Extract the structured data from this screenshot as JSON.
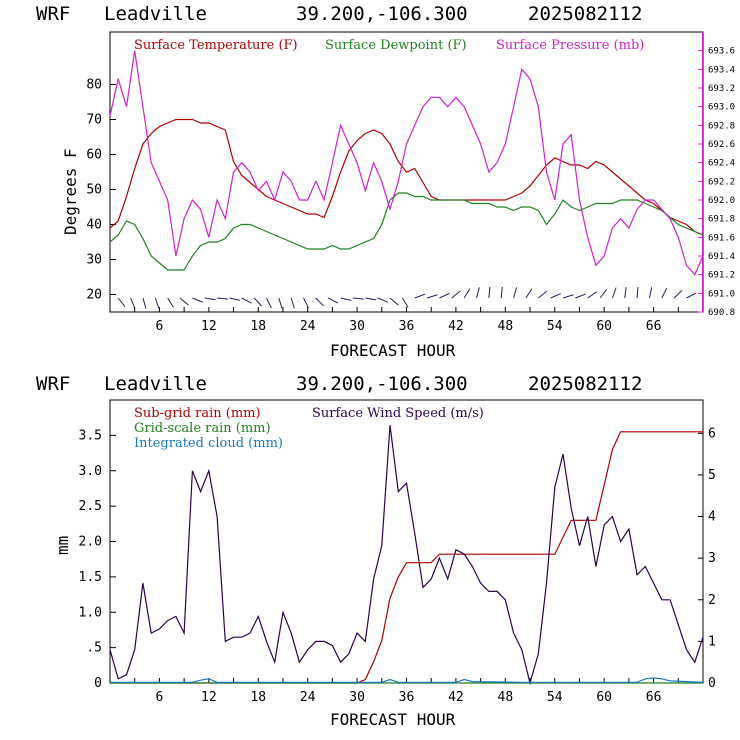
{
  "panels": [
    {
      "header": {
        "model": "WRF",
        "station": "Leadville",
        "coords": "39.200,-106.300",
        "run": "2025082112"
      },
      "xlabel": "FORECAST HOUR",
      "ylabel": "Degrees F",
      "legend": [
        {
          "text": "Surface Temperature (F)",
          "color": "#b00000"
        },
        {
          "text": "Surface Dewpoint (F)",
          "color": "#208020"
        },
        {
          "text": "Surface Pressure (mb)",
          "color": "#d020d0"
        }
      ]
    },
    {
      "header": {
        "model": "WRF",
        "station": "Leadville",
        "coords": "39.200,-106.300",
        "run": "2025082112"
      },
      "xlabel": "FORECAST HOUR",
      "ylabel": "mm",
      "legend": [
        {
          "text": "Sub-grid rain (mm)",
          "color": "#b00000"
        },
        {
          "text": "Surface Wind Speed (m/s)",
          "color": "#300050"
        },
        {
          "text": "Grid-scale rain (mm)",
          "color": "#208020"
        },
        {
          "text": "Integrated cloud (mm)",
          "color": "#1878c8"
        }
      ]
    }
  ],
  "chart_data": [
    {
      "type": "line",
      "title": "WRF Leadville 39.200,-106.300 2025082112",
      "xlabel": "FORECAST HOUR",
      "ylabel": "Degrees F",
      "xlim": [
        0,
        72
      ],
      "ylim": [
        15,
        95
      ],
      "x_ticks": [
        "6",
        "12",
        "18",
        "24",
        "30",
        "36",
        "42",
        "48",
        "54",
        "60",
        "66"
      ],
      "y_ticks": [
        "20",
        "30",
        "40",
        "50",
        "60",
        "70",
        "80"
      ],
      "y2_ticks": [
        "690.8",
        "691.0",
        "691.2",
        "691.4",
        "691.6",
        "691.8",
        "692.0",
        "692.2",
        "692.4",
        "692.6",
        "692.8",
        "693.0",
        "693.2",
        "693.4",
        "693.6"
      ],
      "y2lim": [
        690.8,
        693.8
      ],
      "series": [
        {
          "name": "Surface Temperature (F)",
          "color": "#b00000",
          "axis": "left",
          "x": [
            0,
            1,
            2,
            3,
            4,
            5,
            6,
            7,
            8,
            9,
            10,
            11,
            12,
            13,
            14,
            15,
            16,
            17,
            18,
            19,
            20,
            21,
            22,
            23,
            24,
            25,
            26,
            27,
            28,
            29,
            30,
            31,
            32,
            33,
            34,
            35,
            36,
            37,
            38,
            39,
            40,
            41,
            42,
            43,
            44,
            45,
            46,
            47,
            48,
            49,
            50,
            51,
            52,
            53,
            54,
            55,
            56,
            57,
            58,
            59,
            60,
            61,
            62,
            63,
            64,
            65,
            66,
            67,
            68,
            69,
            70,
            71,
            72
          ],
          "y": [
            39,
            41,
            48,
            56,
            63,
            66,
            68,
            69,
            70,
            70,
            70,
            69,
            69,
            68,
            67,
            58,
            54,
            52,
            50,
            48,
            47,
            46,
            45,
            44,
            43,
            43,
            42,
            48,
            55,
            61,
            64,
            66,
            67,
            66,
            63,
            58,
            55,
            56,
            52,
            48,
            47,
            47,
            47,
            47,
            47,
            47,
            47,
            47,
            47,
            48,
            49,
            51,
            54,
            57,
            59,
            58,
            57,
            57,
            56,
            58,
            57,
            55,
            53,
            51,
            49,
            47,
            46,
            44,
            42,
            41,
            40,
            38,
            37
          ]
        },
        {
          "name": "Surface Dewpoint (F)",
          "color": "#208020",
          "axis": "left",
          "x": [
            0,
            1,
            2,
            3,
            4,
            5,
            6,
            7,
            8,
            9,
            10,
            11,
            12,
            13,
            14,
            15,
            16,
            17,
            18,
            19,
            20,
            21,
            22,
            23,
            24,
            25,
            26,
            27,
            28,
            29,
            30,
            31,
            32,
            33,
            34,
            35,
            36,
            37,
            38,
            39,
            40,
            41,
            42,
            43,
            44,
            45,
            46,
            47,
            48,
            49,
            50,
            51,
            52,
            53,
            54,
            55,
            56,
            57,
            58,
            59,
            60,
            61,
            62,
            63,
            64,
            65,
            66,
            67,
            68,
            69,
            70,
            71,
            72
          ],
          "y": [
            35,
            37,
            41,
            40,
            36,
            31,
            29,
            27,
            27,
            27,
            31,
            34,
            35,
            35,
            36,
            39,
            40,
            40,
            39,
            38,
            37,
            36,
            35,
            34,
            33,
            33,
            33,
            34,
            33,
            33,
            34,
            35,
            36,
            40,
            47,
            49,
            49,
            48,
            48,
            47,
            47,
            47,
            47,
            47,
            46,
            46,
            46,
            45,
            45,
            44,
            45,
            45,
            44,
            40,
            43,
            47,
            45,
            44,
            45,
            46,
            46,
            46,
            47,
            47,
            47,
            46,
            45,
            44,
            42,
            40,
            39,
            38,
            37
          ]
        },
        {
          "name": "Surface Pressure (mb)",
          "color": "#d020d0",
          "axis": "right",
          "x": [
            0,
            1,
            2,
            3,
            4,
            5,
            6,
            7,
            8,
            9,
            10,
            11,
            12,
            13,
            14,
            15,
            16,
            17,
            18,
            19,
            20,
            21,
            22,
            23,
            24,
            25,
            26,
            27,
            28,
            29,
            30,
            31,
            32,
            33,
            34,
            35,
            36,
            37,
            38,
            39,
            40,
            41,
            42,
            43,
            44,
            45,
            46,
            47,
            48,
            49,
            50,
            51,
            52,
            53,
            54,
            55,
            56,
            57,
            58,
            59,
            60,
            61,
            62,
            63,
            64,
            65,
            66,
            67,
            68,
            69,
            70,
            71,
            72
          ],
          "y": [
            692.9,
            693.3,
            693.0,
            693.6,
            693.0,
            692.4,
            692.2,
            692.0,
            691.4,
            691.8,
            692.0,
            691.9,
            691.6,
            692.0,
            691.8,
            692.3,
            692.4,
            692.3,
            692.1,
            692.2,
            692.0,
            692.3,
            692.2,
            692.0,
            692.0,
            692.2,
            692.0,
            692.4,
            692.8,
            692.6,
            692.4,
            692.1,
            692.4,
            692.2,
            691.9,
            692.2,
            692.6,
            692.8,
            693.0,
            693.1,
            693.1,
            693.0,
            693.1,
            693.0,
            692.8,
            692.6,
            692.3,
            692.4,
            692.6,
            693.0,
            693.4,
            693.3,
            693.0,
            692.3,
            692.0,
            692.6,
            692.7,
            692.0,
            691.6,
            691.3,
            691.4,
            691.7,
            691.8,
            691.7,
            691.9,
            692.0,
            692.0,
            691.9,
            691.8,
            691.6,
            691.3,
            691.2,
            691.4
          ]
        }
      ]
    },
    {
      "type": "line",
      "title": "WRF Leadville 39.200,-106.300 2025082112",
      "xlabel": "FORECAST HOUR",
      "ylabel": "mm",
      "xlim": [
        0,
        72
      ],
      "ylim": [
        0,
        4.0
      ],
      "x_ticks": [
        "6",
        "12",
        "18",
        "24",
        "30",
        "36",
        "42",
        "48",
        "54",
        "60",
        "66"
      ],
      "y_ticks": [
        "0",
        ".5",
        "1.0",
        "1.5",
        "2.0",
        "2.5",
        "3.0",
        "3.5"
      ],
      "y2_ticks": [
        "0",
        "1",
        "2",
        "3",
        "4",
        "5",
        "6"
      ],
      "y2lim": [
        0,
        6.8
      ],
      "series": [
        {
          "name": "Sub-grid rain (mm)",
          "color": "#b00000",
          "axis": "left",
          "x": [
            0,
            30,
            31,
            32,
            33,
            34,
            35,
            36,
            37,
            38,
            39,
            40,
            41,
            42,
            45,
            48,
            50,
            52,
            54,
            56,
            57,
            58,
            59,
            60,
            61,
            62,
            63,
            66,
            69,
            72
          ],
          "y": [
            0,
            0,
            0.05,
            0.3,
            0.6,
            1.2,
            1.5,
            1.7,
            1.7,
            1.7,
            1.7,
            1.82,
            1.82,
            1.82,
            1.82,
            1.82,
            1.82,
            1.82,
            1.82,
            2.3,
            2.3,
            2.3,
            2.3,
            2.8,
            3.3,
            3.55,
            3.55,
            3.55,
            3.55,
            3.55
          ]
        },
        {
          "name": "Surface Wind Speed (m/s)",
          "color": "#300050",
          "axis": "right",
          "x": [
            0,
            1,
            2,
            3,
            4,
            5,
            6,
            7,
            8,
            9,
            10,
            11,
            12,
            13,
            14,
            15,
            16,
            17,
            18,
            19,
            20,
            21,
            22,
            23,
            24,
            25,
            26,
            27,
            28,
            29,
            30,
            31,
            32,
            33,
            34,
            35,
            36,
            37,
            38,
            39,
            40,
            41,
            42,
            43,
            44,
            45,
            46,
            47,
            48,
            49,
            50,
            51,
            52,
            53,
            54,
            55,
            56,
            57,
            58,
            59,
            60,
            61,
            62,
            63,
            64,
            65,
            66,
            67,
            68,
            69,
            70,
            71,
            72
          ],
          "y": [
            0.8,
            0.1,
            0.2,
            0.8,
            2.4,
            1.2,
            1.3,
            1.5,
            1.6,
            1.2,
            5.1,
            4.6,
            5.1,
            4.0,
            1.0,
            1.1,
            1.1,
            1.2,
            1.6,
            1.0,
            0.5,
            1.7,
            1.2,
            0.5,
            0.8,
            1.0,
            1.0,
            0.9,
            0.5,
            0.7,
            1.2,
            1.0,
            2.5,
            3.3,
            6.2,
            4.6,
            4.8,
            3.6,
            2.3,
            2.5,
            3.0,
            2.5,
            3.2,
            3.1,
            2.8,
            2.4,
            2.2,
            2.2,
            2.0,
            1.2,
            0.8,
            0.0,
            0.7,
            2.4,
            4.7,
            5.5,
            4.2,
            3.3,
            4.0,
            2.8,
            3.8,
            4.0,
            3.4,
            3.7,
            2.6,
            2.8,
            2.4,
            2.0,
            2.0,
            1.4,
            0.8,
            0.5,
            1.1
          ]
        },
        {
          "name": "Grid-scale rain (mm)",
          "color": "#208020",
          "axis": "left",
          "x": [
            0,
            72
          ],
          "y": [
            0,
            0
          ]
        },
        {
          "name": "Integrated cloud (mm)",
          "color": "#1878c8",
          "axis": "left",
          "x": [
            0,
            10,
            11,
            12,
            13,
            20,
            33,
            34,
            35,
            40,
            42,
            43,
            44,
            50,
            60,
            64,
            65,
            66,
            67,
            68,
            70,
            72
          ],
          "y": [
            0.01,
            0.01,
            0.04,
            0.06,
            0.01,
            0.01,
            0.01,
            0.05,
            0.01,
            0.01,
            0.01,
            0.05,
            0.02,
            0.01,
            0.01,
            0.01,
            0.06,
            0.07,
            0.06,
            0.03,
            0.02,
            0.01
          ]
        }
      ]
    }
  ]
}
